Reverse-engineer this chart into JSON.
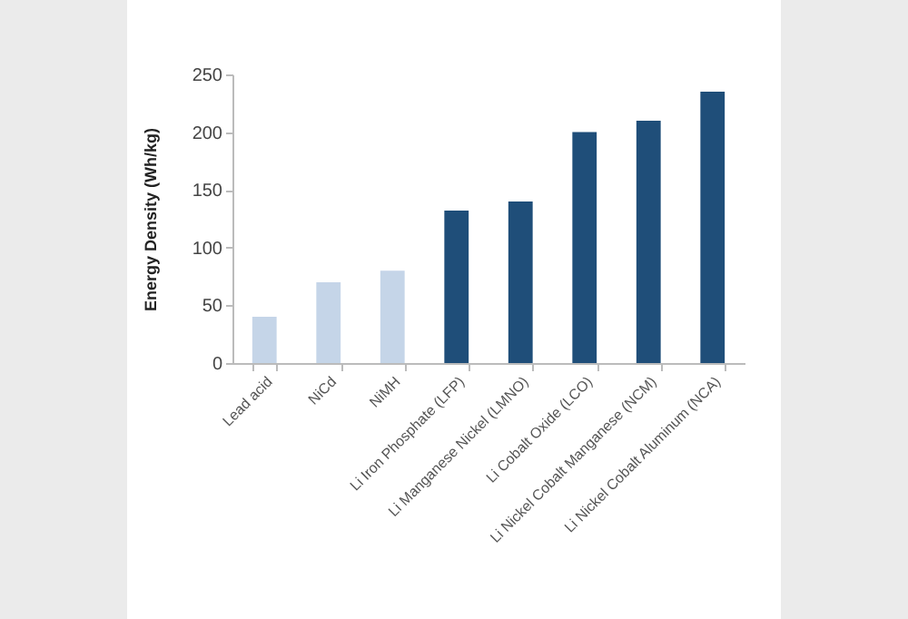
{
  "chart_data": {
    "type": "bar",
    "ylabel": "Energy Density (Wh/kg)",
    "categories": [
      "Lead acid",
      "NiCd",
      "NiMH",
      "Li Iron Phosphate (LFP)",
      "Li Manganese Nickel (LMNO)",
      "Li Cobalt Oxide (LCO)",
      "Li Nickel Cobalt Manganese (NCM)",
      "Li Nickel Cobalt Aluminum (NCA)"
    ],
    "values": [
      40,
      70,
      80,
      132,
      140,
      200,
      210,
      235
    ],
    "colors": [
      "#c5d5e8",
      "#c5d5e8",
      "#c5d5e8",
      "#1f4e79",
      "#1f4e79",
      "#1f4e79",
      "#1f4e79",
      "#1f4e79"
    ],
    "ylim": [
      0,
      250
    ],
    "yticks": [
      0,
      50,
      100,
      150,
      200,
      250
    ]
  }
}
